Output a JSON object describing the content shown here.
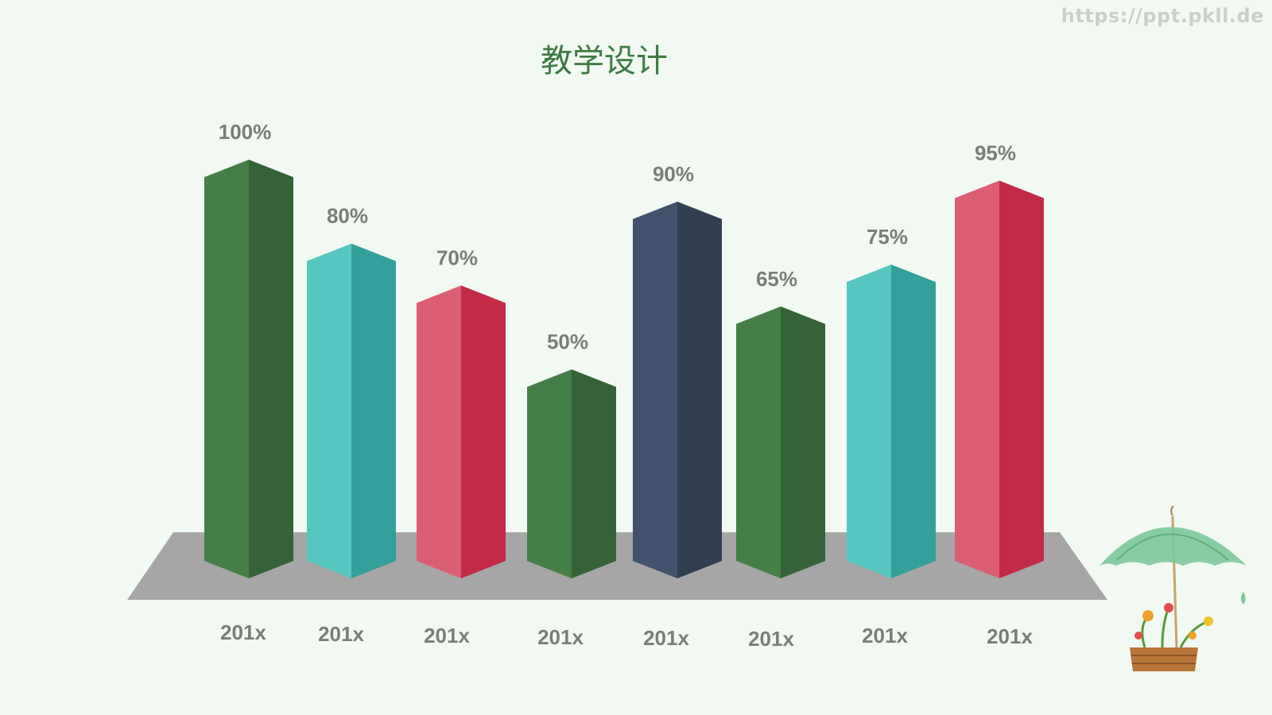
{
  "slide": {
    "title": "教学设计",
    "watermark": "https://ppt.pkll.de"
  },
  "chart_data": {
    "type": "bar",
    "title": "教学设计",
    "categories": [
      "201x",
      "201x",
      "201x",
      "201x",
      "201x",
      "201x",
      "201x",
      "201x"
    ],
    "values": [
      100,
      80,
      70,
      50,
      90,
      65,
      75,
      95
    ],
    "value_labels": [
      "100%",
      "80%",
      "70%",
      "50%",
      "90%",
      "65%",
      "75%",
      "95%"
    ],
    "ylim": [
      0,
      100
    ],
    "grid": false,
    "legend": "none",
    "style": "3d-column",
    "colors": [
      {
        "front": "#457f47",
        "side": "#336336"
      },
      {
        "front": "#55c7c0",
        "side": "#33a09b"
      },
      {
        "front": "#db5e73",
        "side": "#c22a46"
      },
      {
        "front": "#457f47",
        "side": "#336336"
      },
      {
        "front": "#42526d",
        "side": "#323e52"
      },
      {
        "front": "#457f47",
        "side": "#336336"
      },
      {
        "front": "#55c7c0",
        "side": "#33a09b"
      },
      {
        "front": "#db5e73",
        "side": "#c22a46"
      }
    ],
    "floor_color": "#a6a6a6"
  }
}
